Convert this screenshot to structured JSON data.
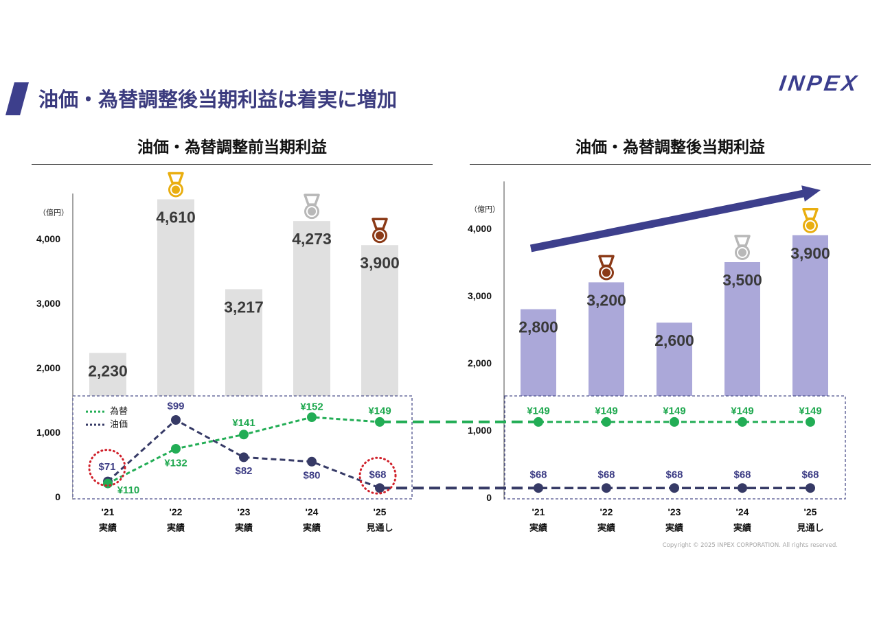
{
  "title": "油価・為替調整後当期利益は着実に増加",
  "logo": "INPEX",
  "copyright": "Copyright © 2025 INPEX CORPORATION. All rights reserved.",
  "colors": {
    "brand_navy": "#3d3f8c",
    "title_text": "#3b3b7e",
    "bar_before": "#e0e0e0",
    "bar_after": "#aba8d9",
    "value_label": "#3a3a3a",
    "axis": "#666666",
    "box_border": "#4a4e8a",
    "highlight_circle": "#d0202a",
    "medal_gold": "#e9ae10",
    "medal_silver": "#b8b8b8",
    "medal_bronze": "#8b3a17"
  },
  "chart_data": [
    {
      "type": "bar",
      "title": "油価・為替調整前当期利益",
      "unit_label": "（億円）",
      "categories": [
        "'21",
        "'22",
        "'23",
        "'24",
        "'25"
      ],
      "category_sublabels": [
        "実績",
        "実績",
        "実績",
        "実績",
        "見通し"
      ],
      "values": [
        2230,
        4610,
        3217,
        4273,
        3900
      ],
      "value_labels": [
        "2,230",
        "4,610",
        "3,217",
        "4,273",
        "3,900"
      ],
      "y_ticks": [
        {
          "value": 0,
          "label": "0"
        },
        {
          "value": 1000,
          "label": "1,000"
        },
        {
          "value": 2000,
          "label": "2,000"
        },
        {
          "value": 3000,
          "label": "3,000"
        },
        {
          "value": 4000,
          "label": "4,000"
        }
      ],
      "ylim": [
        0,
        4700
      ],
      "grid": false,
      "medals": [
        null,
        "gold",
        null,
        "silver",
        "bronze"
      ],
      "legend": [
        "為替",
        "油価"
      ],
      "legend_position": "top-left",
      "line_series": [
        {
          "name": "為替",
          "line_color": "#22ad55",
          "label_color": "#1fa84f",
          "values": [
            110,
            132,
            141,
            152,
            149
          ],
          "labels": [
            "¥110",
            "¥132",
            "¥141",
            "¥152",
            "¥149"
          ]
        },
        {
          "name": "油価",
          "line_color": "#363a66",
          "label_color": "#3d3d85",
          "values": [
            71,
            99,
            82,
            80,
            68
          ],
          "labels": [
            "$71",
            "$99",
            "$82",
            "$80",
            "$68"
          ],
          "circled": [
            true,
            false,
            false,
            false,
            true
          ]
        }
      ]
    },
    {
      "type": "bar",
      "title": "油価・為替調整後当期利益",
      "unit_label": "（億円）",
      "categories": [
        "'21",
        "'22",
        "'23",
        "'24",
        "'25"
      ],
      "category_sublabels": [
        "実績",
        "実績",
        "実績",
        "実績",
        "見通し"
      ],
      "values": [
        2800,
        3200,
        2600,
        3500,
        3900
      ],
      "value_labels": [
        "2,800",
        "3,200",
        "2,600",
        "3,500",
        "3,900"
      ],
      "y_ticks": [
        {
          "value": 0,
          "label": "0"
        },
        {
          "value": 1000,
          "label": "1,000"
        },
        {
          "value": 2000,
          "label": "2,000"
        },
        {
          "value": 3000,
          "label": "3,000"
        },
        {
          "value": 4000,
          "label": "4,000"
        }
      ],
      "ylim": [
        0,
        4700
      ],
      "grid": false,
      "medals": [
        null,
        "bronze",
        null,
        "silver",
        "gold"
      ],
      "line_series": [
        {
          "line_color": "#22ad55",
          "label_color": "#1fa84f",
          "values": [
            149,
            149,
            149,
            149,
            149
          ],
          "labels": [
            "¥149",
            "¥149",
            "¥149",
            "¥149",
            "¥149"
          ]
        },
        {
          "line_color": "#363a66",
          "label_color": "#3d3d85",
          "values": [
            68,
            68,
            68,
            68,
            68
          ],
          "labels": [
            "$68",
            "$68",
            "$68",
            "$68",
            "$68"
          ]
        }
      ]
    }
  ]
}
